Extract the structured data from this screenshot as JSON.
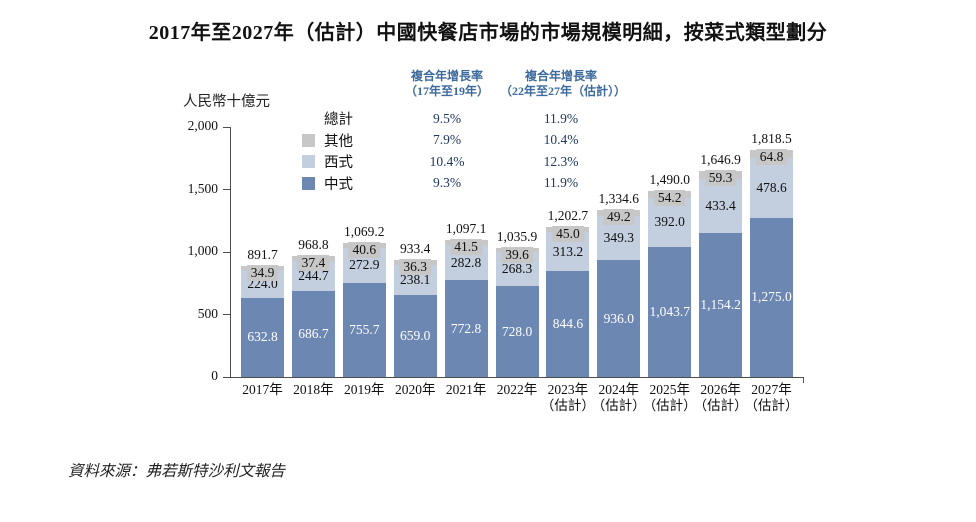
{
  "title": "2017年至2027年（估計）中國快餐店市場的市場規模明細，按菜式類型劃分",
  "source": "資料來源：弗若斯特沙利文報告",
  "colors": {
    "chinese": "#6D87B3",
    "western": "#C3CEDF",
    "other": "#C7C7C7",
    "axis": "#4d4d4d",
    "cagr_header": "#3D6A9C",
    "cagr_value": "#1F3864"
  },
  "cagr_table": {
    "header_col1": [
      "複合年增長率",
      "（17年至19年）"
    ],
    "header_col2": [
      "複合年增長率",
      "（22年至27年（估計））"
    ],
    "rows": [
      {
        "label": "總計",
        "swatch": null,
        "v1": "9.5%",
        "v2": "11.9%"
      },
      {
        "label": "其他",
        "swatch": "#C7C7C7",
        "v1": "7.9%",
        "v2": "10.4%"
      },
      {
        "label": "西式",
        "swatch": "#C3CEDF",
        "v1": "10.4%",
        "v2": "12.3%"
      },
      {
        "label": "中式",
        "swatch": "#6D87B3",
        "v1": "9.3%",
        "v2": "11.9%"
      }
    ]
  },
  "chart_data": {
    "type": "bar",
    "stacked": true,
    "title": "2017年至2027年（估計）中國快餐店市場的市場規模明細，按菜式類型劃分",
    "unit_label": "人民幣十億元",
    "ylim": [
      0,
      2000
    ],
    "yticks": [
      0,
      500,
      1000,
      1500,
      2000
    ],
    "ytick_labels": [
      "0",
      "500",
      "1,000",
      "1,500",
      "2,000"
    ],
    "grid": false,
    "legend_position": "top-center",
    "categories": [
      "2017年",
      "2018年",
      "2019年",
      "2020年",
      "2021年",
      "2022年",
      "2023年（估計）",
      "2024年（估計）",
      "2025年（估計）",
      "2026年（估計）",
      "2027年（估計）"
    ],
    "series": [
      {
        "key": "chinese",
        "name": "中式",
        "color": "#6D87B3",
        "label_class": "lab-white",
        "values": [
          632.8,
          686.7,
          755.7,
          659.0,
          772.8,
          728.0,
          844.6,
          936.0,
          1043.7,
          1154.2,
          1275.0
        ],
        "labels": [
          "632.8",
          "686.7",
          "755.7",
          "659.0",
          "772.8",
          "728.0",
          "844.6",
          "936.0",
          "1,043.7",
          "1,154.2",
          "1,275.0"
        ]
      },
      {
        "key": "western",
        "name": "西式",
        "color": "#C3CEDF",
        "label_class": "lab-dark",
        "values": [
          224.0,
          244.7,
          272.9,
          238.1,
          282.8,
          268.3,
          313.2,
          349.3,
          392.0,
          433.4,
          478.6
        ],
        "labels": [
          "224.0",
          "244.7",
          "272.9",
          "238.1",
          "282.8",
          "268.3",
          "313.2",
          "349.3",
          "392.0",
          "433.4",
          "478.6"
        ]
      },
      {
        "key": "other",
        "name": "其他",
        "color": "#C7C7C7",
        "label_class": "lab-graybox",
        "values": [
          34.9,
          37.4,
          40.6,
          36.3,
          41.5,
          39.6,
          45.0,
          49.2,
          54.2,
          59.3,
          64.8
        ],
        "labels": [
          "34.9",
          "37.4",
          "40.6",
          "36.3",
          "41.5",
          "39.6",
          "45.0",
          "49.2",
          "54.2",
          "59.3",
          "64.8"
        ]
      }
    ],
    "totals": {
      "values": [
        891.7,
        968.8,
        1069.2,
        933.4,
        1097.1,
        1035.9,
        1202.7,
        1334.6,
        1490.0,
        1646.9,
        1818.5
      ],
      "labels": [
        "891.7",
        "968.8",
        "1,069.2",
        "933.4",
        "1,097.1",
        "1,035.9",
        "1,202.7",
        "1,334.6",
        "1,490.0",
        "1,646.9",
        "1,818.5"
      ]
    }
  }
}
